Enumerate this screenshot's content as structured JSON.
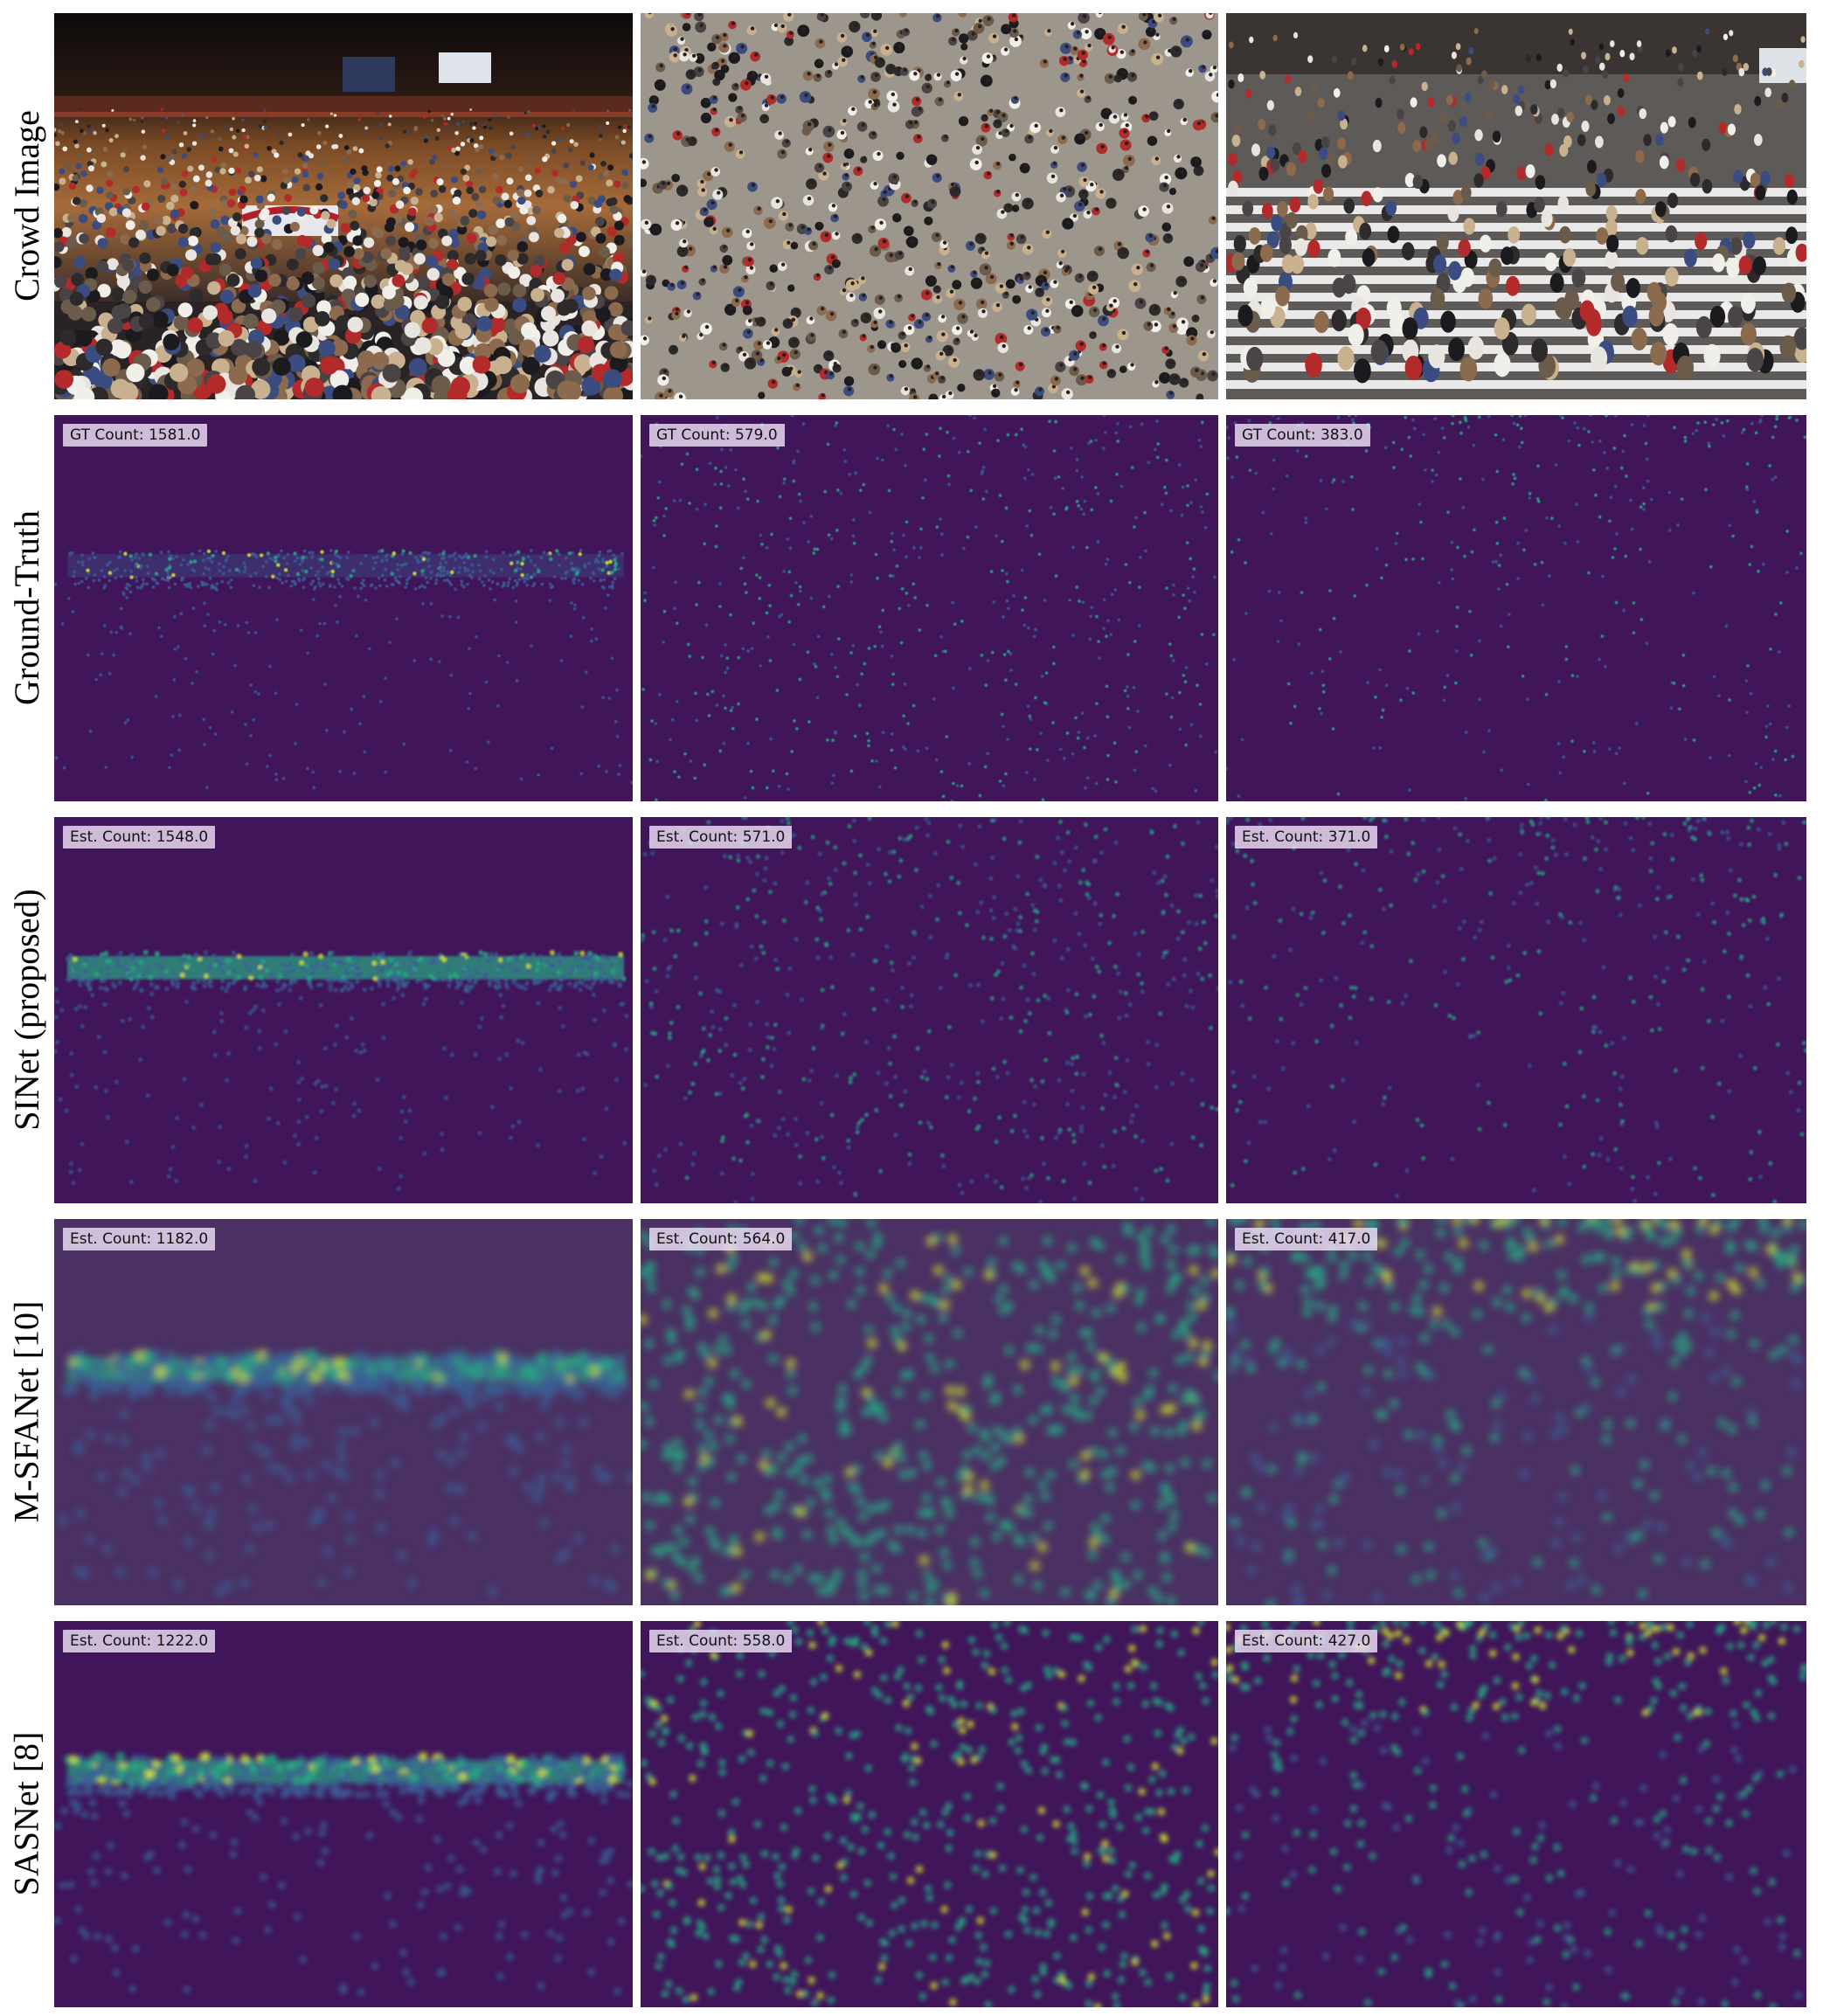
{
  "rows": [
    {
      "label": "Crowd Image",
      "kind": "photo"
    },
    {
      "label": "Ground-Truth",
      "kind": "density"
    },
    {
      "label": "SINet (proposed)",
      "kind": "density"
    },
    {
      "label": "M-SFANet [10]",
      "kind": "density"
    },
    {
      "label": "SASNet [8]",
      "kind": "density"
    }
  ],
  "counts": [
    [
      "GT Count: 1581.0",
      "GT Count: 579.0",
      "GT Count: 383.0"
    ],
    [
      "Est. Count: 1548.0",
      "Est. Count: 571.0",
      "Est. Count: 371.0"
    ],
    [
      "Est. Count: 1182.0",
      "Est. Count: 564.0",
      "Est. Count: 417.0"
    ],
    [
      "Est. Count: 1222.0",
      "Est. Count: 558.0",
      "Est. Count: 427.0"
    ]
  ],
  "colors": {
    "density_background": "#40155a",
    "blurred_background": "#4b3063",
    "density_low": "#3b5e95",
    "density_mid": "#27a883",
    "density_high": "#cde42c",
    "badge_background": "#eee0f6"
  }
}
